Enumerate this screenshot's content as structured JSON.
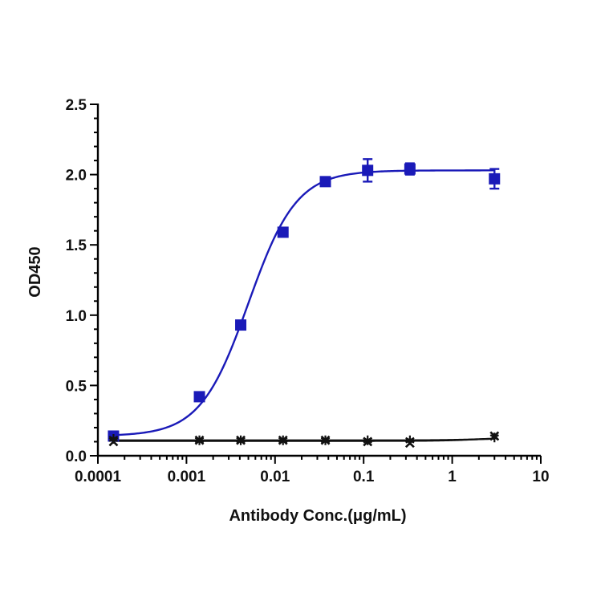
{
  "chart_data": {
    "type": "scatter",
    "xlabel": "Antibody Conc.(μg/mL)",
    "ylabel": "OD450",
    "xscale": "log",
    "xlim": [
      0.0001,
      10
    ],
    "ylim": [
      0,
      2.5
    ],
    "x_ticks": [
      "0.0001",
      "0.001",
      "0.01",
      "0.1",
      "1",
      "10"
    ],
    "y_ticks": [
      "0.0",
      "0.5",
      "1.0",
      "1.5",
      "2.0",
      "2.5"
    ],
    "grid": false,
    "legend": "none",
    "series": [
      {
        "marker": "square",
        "color": "#1a1ab8",
        "x": [
          0.00015,
          0.0014,
          0.0041,
          0.0123,
          0.037,
          0.111,
          0.333,
          3.0
        ],
        "y": [
          0.14,
          0.42,
          0.93,
          1.59,
          1.95,
          2.03,
          2.04,
          1.97
        ],
        "error": [
          0.01,
          0.01,
          0.02,
          0.02,
          0.02,
          0.08,
          0.04,
          0.07
        ],
        "fit": {
          "model": "4PL",
          "bottom": 0.14,
          "top": 2.03,
          "ec50": 0.005,
          "hill": 1.6
        }
      },
      {
        "marker": "x",
        "color": "#111111",
        "x": [
          0.00015,
          0.0014,
          0.0041,
          0.0123,
          0.037,
          0.111,
          0.333,
          3.0
        ],
        "y": [
          0.1,
          0.11,
          0.11,
          0.11,
          0.11,
          0.1,
          0.09,
          0.14
        ],
        "fit": {
          "model": "4PL",
          "bottom": 0.105,
          "top": 0.13,
          "ec50": 2.0,
          "hill": 2
        }
      },
      {
        "marker": "asterisk",
        "color": "#111111",
        "x": [
          0.00015,
          0.0014,
          0.0041,
          0.0123,
          0.037,
          0.111,
          0.333,
          3.0
        ],
        "y": [
          0.12,
          0.11,
          0.11,
          0.11,
          0.11,
          0.11,
          0.11,
          0.13
        ],
        "fit": {
          "model": "4PL",
          "bottom": 0.11,
          "top": 0.125,
          "ec50": 2.0,
          "hill": 2
        }
      }
    ]
  }
}
